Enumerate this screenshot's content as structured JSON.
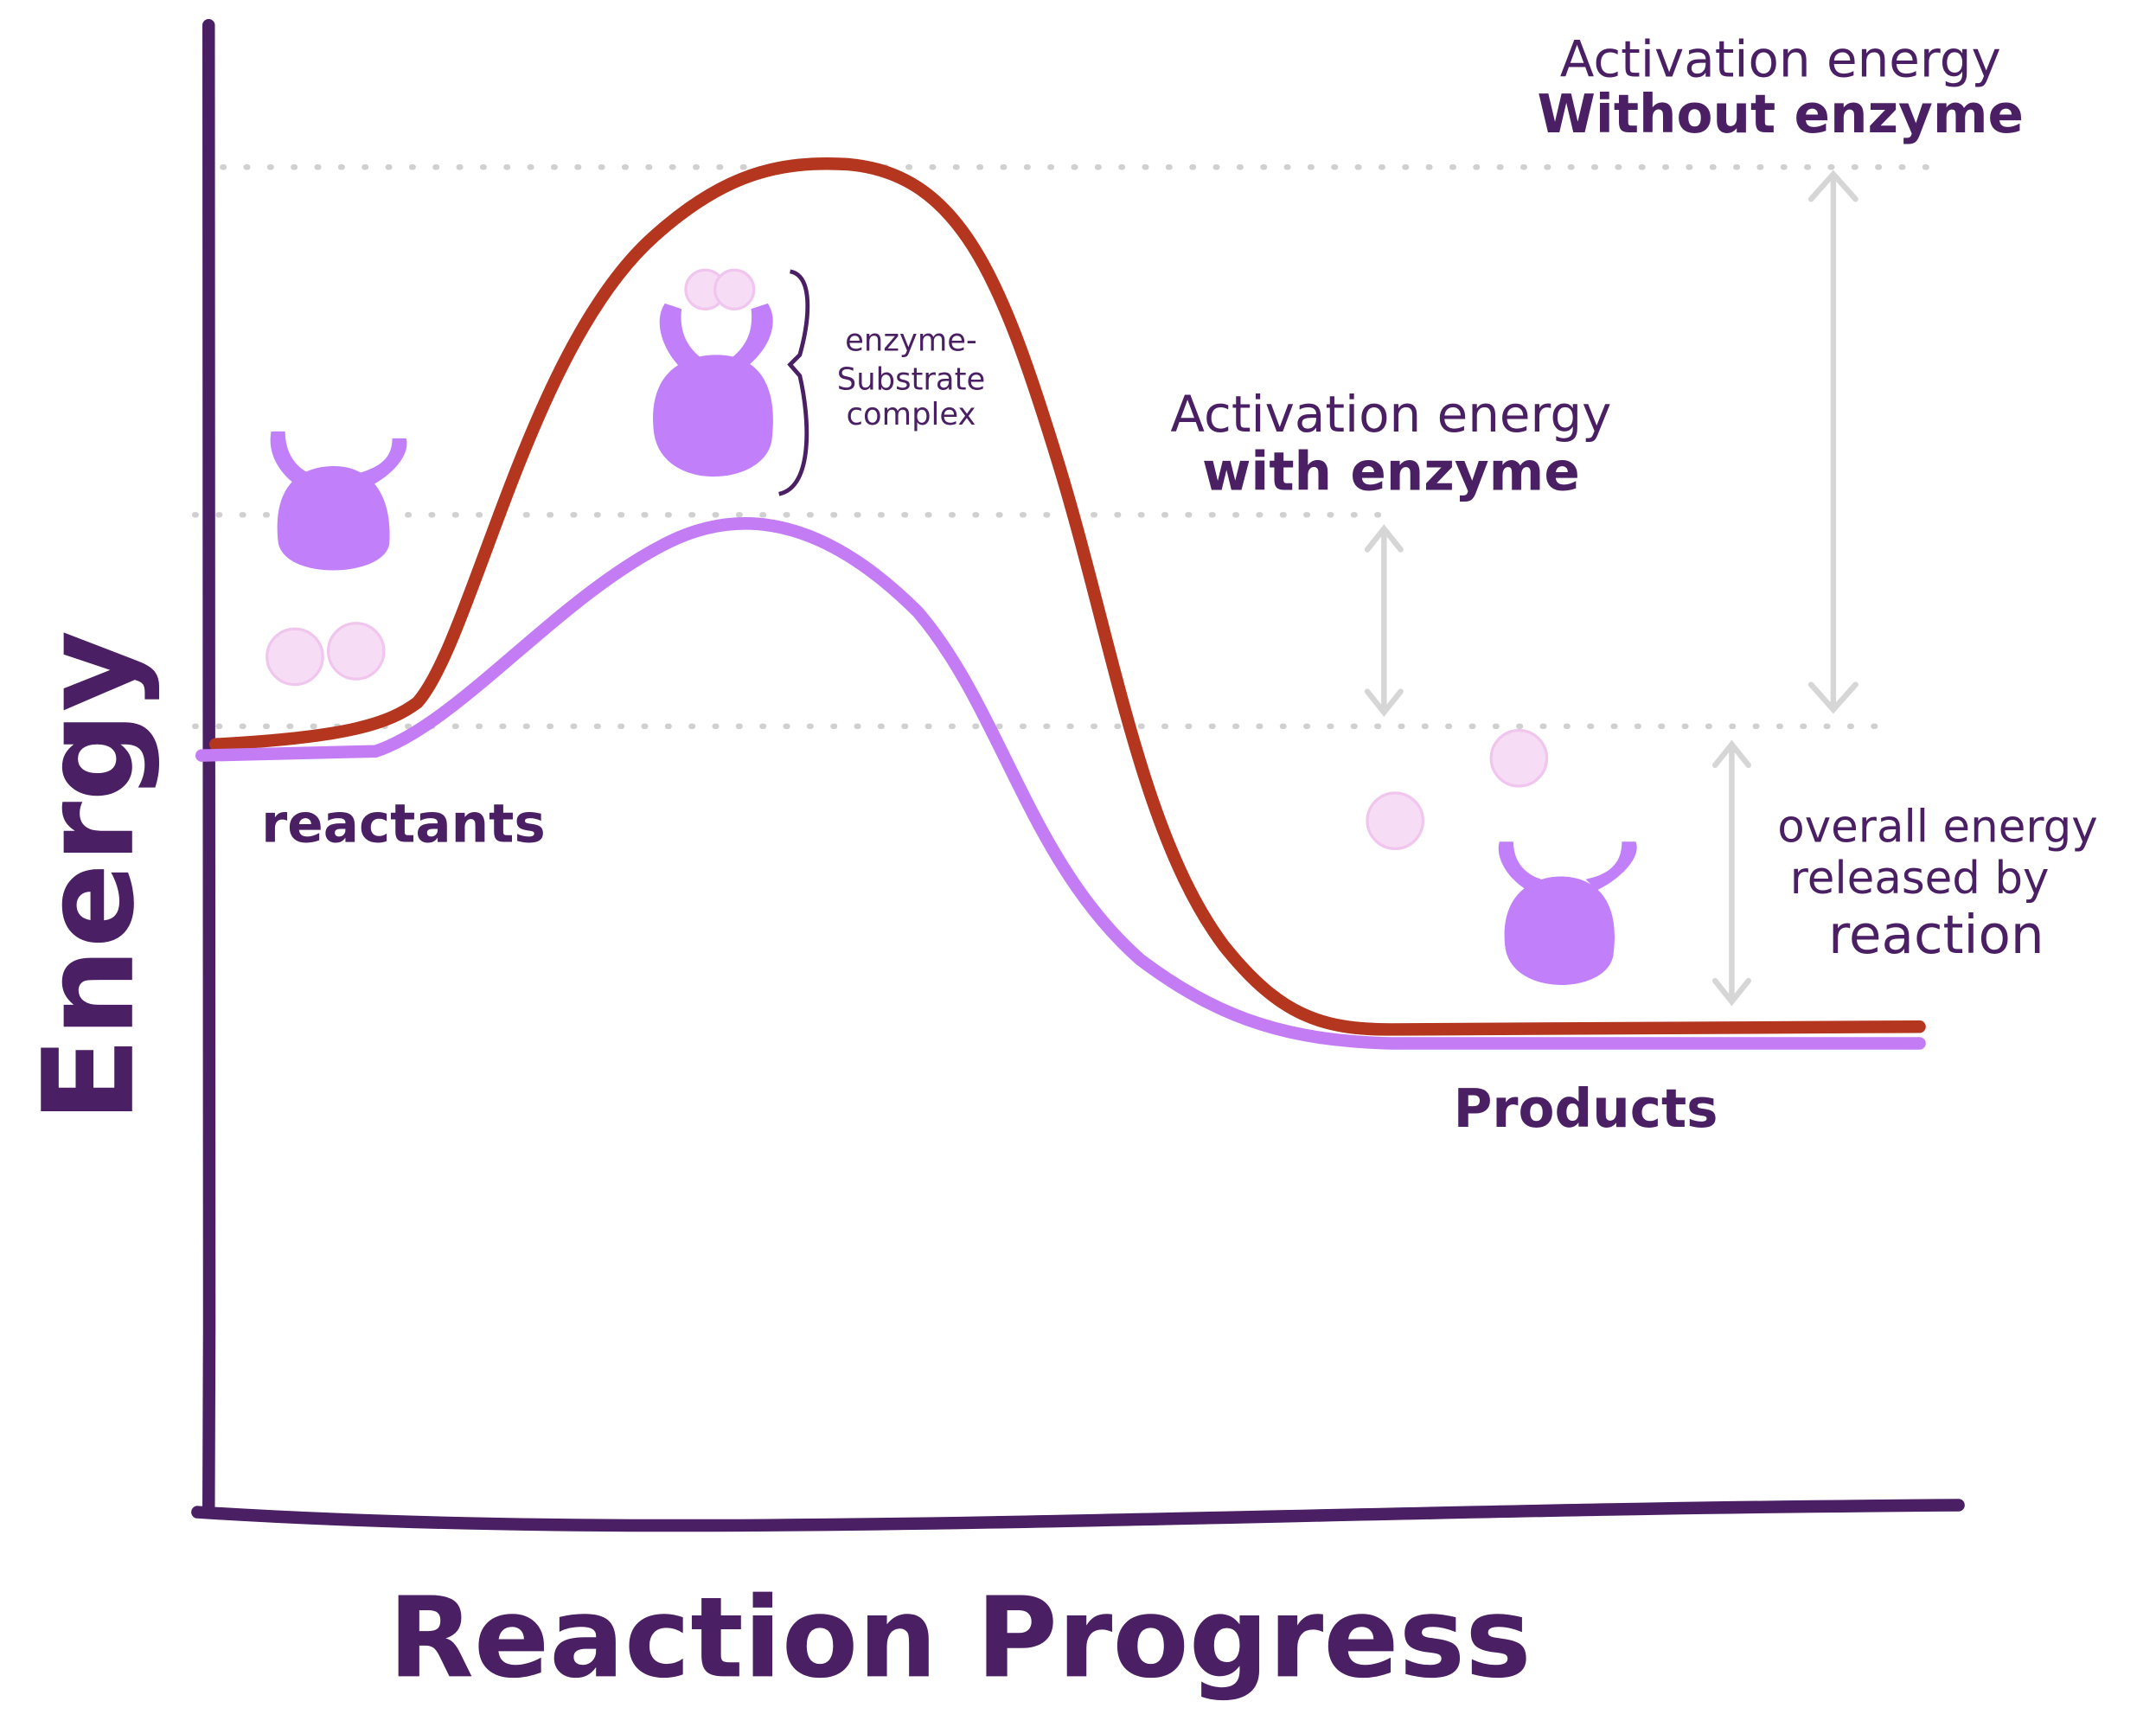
{
  "axes": {
    "y_label": "Energy",
    "x_label": "Reaction Progress"
  },
  "labels": {
    "reactants": "reactants",
    "products": "Products",
    "complex": [
      "enzyme-",
      "Substrate",
      "complex"
    ],
    "without_enzyme": [
      "Activation energy",
      "Without enzyme"
    ],
    "with_enzyme": [
      "Activation energy",
      "with enzyme"
    ],
    "released": [
      "overall energy",
      "released by",
      "reaction"
    ]
  }
}
